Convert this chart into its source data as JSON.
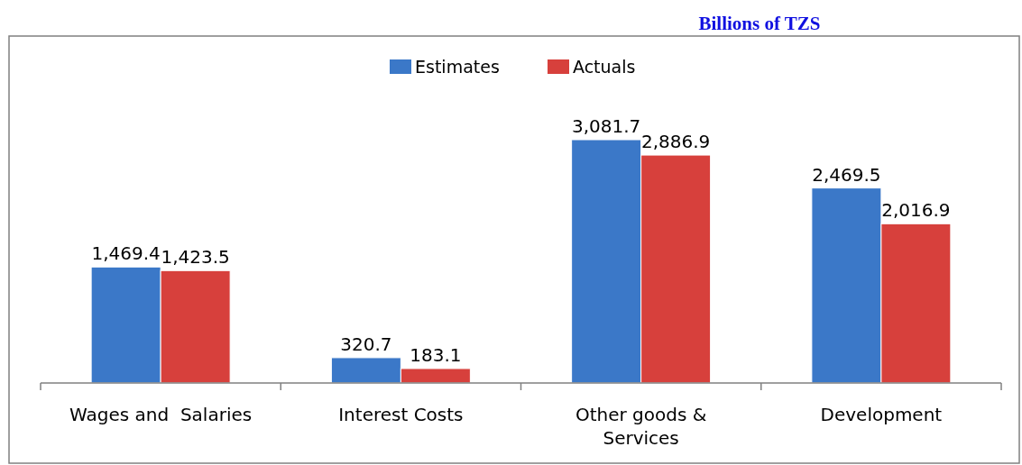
{
  "chart_data": {
    "type": "bar",
    "title": "Billions of TZS",
    "categories": [
      "Wages and  Salaries",
      "Interest Costs",
      "Other goods & Services",
      "Development"
    ],
    "series": [
      {
        "name": "Estimates",
        "color": "#3b78c8",
        "values": [
          1469.4,
          320.7,
          3081.7,
          2469.5
        ],
        "value_labels": [
          "1,469.4",
          "320.7",
          "3,081.7",
          "2,469.5"
        ]
      },
      {
        "name": "Actuals",
        "color": "#d7403c",
        "values": [
          1423.5,
          183.1,
          2886.9,
          2016.9
        ],
        "value_labels": [
          "1,423.5",
          "183.1",
          "2,886.9",
          "2,016.9"
        ]
      }
    ],
    "legend": "top"
  }
}
